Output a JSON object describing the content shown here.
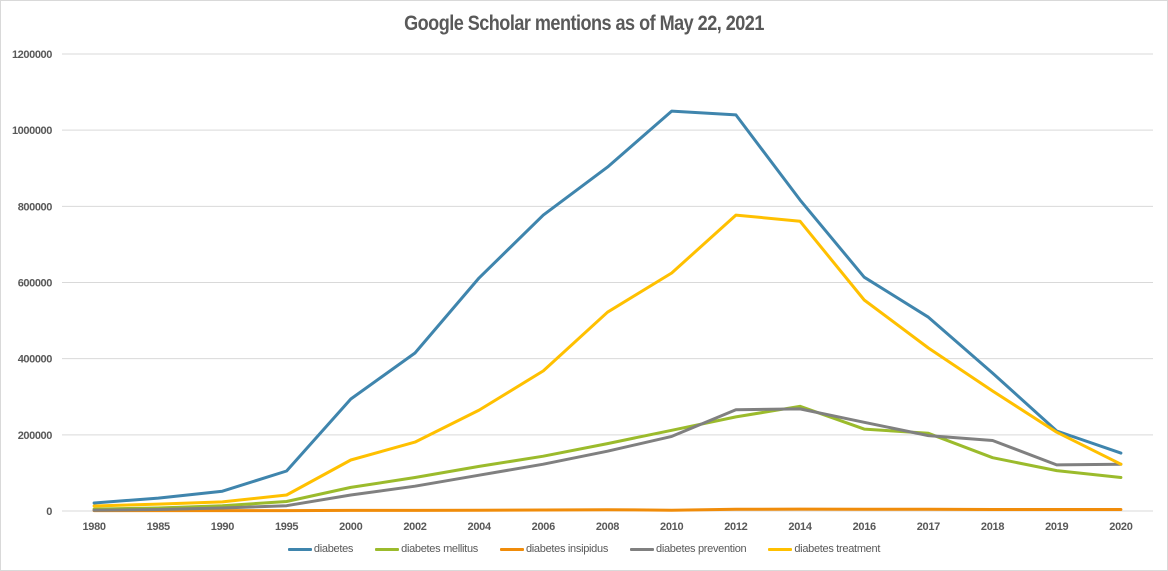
{
  "chart_data": {
    "type": "line",
    "title": "Google Scholar mentions as of May 22, 2021",
    "xlabel": "",
    "ylabel": "",
    "ylim": [
      0,
      1200000
    ],
    "yticks": [
      "0",
      "200000",
      "400000",
      "600000",
      "800000",
      "1000000",
      "1200000"
    ],
    "ytick_values": [
      0,
      200000,
      400000,
      600000,
      800000,
      1000000,
      1200000
    ],
    "grid": true,
    "legend_position": "bottom",
    "categories": [
      "1980",
      "1985",
      "1990",
      "1995",
      "2000",
      "2002",
      "2004",
      "2006",
      "2008",
      "2010",
      "2012",
      "2014",
      "2016",
      "2017",
      "2018",
      "2019",
      "2020"
    ],
    "series": [
      {
        "name": "diabetes",
        "color": "#3f85ad",
        "values": [
          21000,
          34000,
          52000,
          105000,
          294000,
          415000,
          612000,
          777000,
          903000,
          1050000,
          1040000,
          817000,
          614000,
          509000,
          362000,
          210000,
          152000
        ]
      },
      {
        "name": "diabetes mellitus",
        "color": "#9bbb2c",
        "values": [
          5000,
          8000,
          14000,
          25000,
          62000,
          88000,
          117000,
          144000,
          177000,
          212000,
          247000,
          275000,
          215000,
          204000,
          140000,
          106000,
          88000
        ]
      },
      {
        "name": "diabetes insipidus",
        "color": "#f08c0a",
        "values": [
          1000,
          1000,
          1000,
          1000,
          1500,
          1500,
          2000,
          2500,
          3500,
          2000,
          4500,
          5000,
          4500,
          4500,
          4000,
          4000,
          4000
        ]
      },
      {
        "name": "diabetes prevention",
        "color": "#808080",
        "values": [
          2000,
          4000,
          8000,
          14000,
          42000,
          65000,
          94000,
          123000,
          157000,
          196000,
          266000,
          268000,
          233000,
          198000,
          185000,
          121000,
          123000
        ]
      },
      {
        "name": "diabetes treatment",
        "color": "#ffc000",
        "values": [
          13000,
          18000,
          24000,
          42000,
          134000,
          181000,
          265000,
          368000,
          522000,
          625000,
          777000,
          761000,
          554000,
          428000,
          315000,
          207000,
          123000
        ]
      }
    ]
  }
}
